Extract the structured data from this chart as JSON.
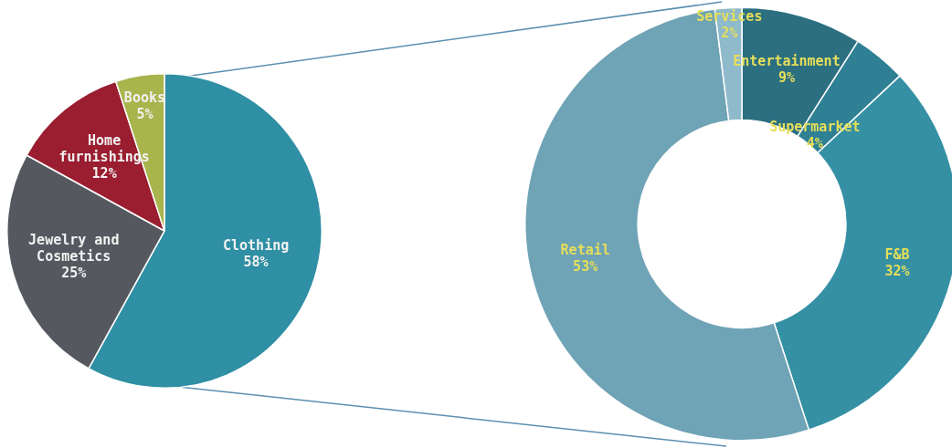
{
  "chart_data": [
    {
      "type": "pie",
      "categories": [
        "Clothing",
        "Jewelry and Cosmetics",
        "Home furnishings",
        "Books"
      ],
      "values": [
        58,
        25,
        12,
        5
      ],
      "value_labels": [
        "58%",
        "25%",
        "12%",
        "5%"
      ],
      "colors": [
        "#2f8fa4",
        "#55595f",
        "#9a1d30",
        "#a8b44c"
      ],
      "legend": false
    },
    {
      "type": "donut",
      "categories": [
        "Entertainment",
        "Supermarket",
        "F&B",
        "Retail",
        "Services"
      ],
      "values": [
        9,
        4,
        32,
        53,
        2
      ],
      "value_labels": [
        "9%",
        "4%",
        "32%",
        "53%",
        "2%"
      ],
      "colors": [
        "#2b6f80",
        "#2f8094",
        "#3590a4",
        "#6fa3b6",
        "#8fbacb"
      ],
      "legend": false
    }
  ]
}
